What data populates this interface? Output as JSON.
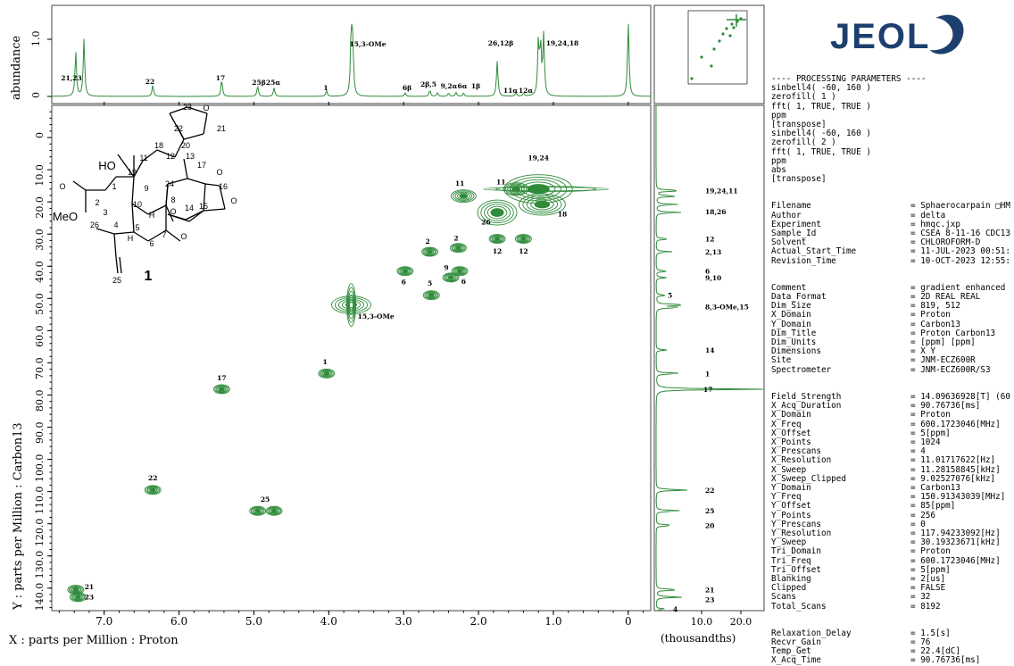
{
  "logo": {
    "text": "JEOL",
    "color": "#1d3f6e"
  },
  "colors": {
    "contour": "#2e8b3a",
    "trace": "#2e8b3a",
    "axis": "#000000",
    "panel_border": "#555555"
  },
  "chart_data": {
    "type": "heatmap",
    "experiment": "HMQC 2D NMR",
    "x_axis": {
      "label": "X : parts per Million : Proton",
      "range": [
        7.7,
        -0.3
      ],
      "ticks": [
        "7.0",
        "6.0",
        "5.0",
        "4.0",
        "3.0",
        "2.0",
        "1.0",
        "0"
      ],
      "tick_values": [
        7.0,
        6.0,
        5.0,
        4.0,
        3.0,
        2.0,
        1.0,
        0
      ]
    },
    "y_axis": {
      "label": "Y : parts per Million : Carbon13",
      "range": [
        -10,
        147
      ],
      "ticks": [
        "0",
        "10.0",
        "20.0",
        "30.0",
        "40.0",
        "50.0",
        "60.0",
        "70.0",
        "80.0",
        "90.0",
        "100.0",
        "110.0",
        "120.0",
        "130.0",
        "140.0"
      ],
      "tick_values": [
        0,
        10,
        20,
        30,
        40,
        50,
        60,
        70,
        80,
        90,
        100,
        110,
        120,
        130,
        140
      ]
    },
    "top_axis": {
      "label": "abundance",
      "ticks": [
        "0",
        "1.0"
      ]
    },
    "right_axis": {
      "label": "(thousandths)",
      "ticks": [
        "10.0",
        "20.0"
      ]
    },
    "cross_peaks": [
      {
        "label": "21",
        "x": 7.38,
        "y": 140.5,
        "lx": 7.2,
        "ly": 140.3
      },
      {
        "label": "23",
        "x": 7.35,
        "y": 142.8,
        "lx": 7.2,
        "ly": 143.5
      },
      {
        "label": "22",
        "x": 6.35,
        "y": 109.5,
        "lx": 6.35,
        "ly": 106.5
      },
      {
        "label": "17",
        "x": 5.43,
        "y": 78.2,
        "lx": 5.43,
        "ly": 75.5
      },
      {
        "label": "25",
        "x": 4.95,
        "y": 116.0,
        "lx": 4.85,
        "ly": 113.2
      },
      {
        "label": "25",
        "x": 4.73,
        "y": 116.0,
        "lx": null,
        "ly": null
      },
      {
        "label": "1",
        "x": 4.03,
        "y": 73.3,
        "lx": 4.05,
        "ly": 70.5
      },
      {
        "label": "15,3-OMe",
        "x": 3.7,
        "y": 52.0,
        "lx": 3.37,
        "ly": 56.3
      },
      {
        "label": "6",
        "x": 2.98,
        "y": 41.5,
        "lx": 3.0,
        "ly": 45.6
      },
      {
        "label": "2",
        "x": 2.65,
        "y": 35.5,
        "lx": 2.68,
        "ly": 33.0
      },
      {
        "label": "5",
        "x": 2.63,
        "y": 49.0,
        "lx": 2.65,
        "ly": 46.0
      },
      {
        "label": "9",
        "x": 2.37,
        "y": 43.5,
        "lx": 2.43,
        "ly": 41.2
      },
      {
        "label": "2",
        "x": 2.27,
        "y": 34.3,
        "lx": 2.3,
        "ly": 32.0
      },
      {
        "label": "6",
        "x": 2.25,
        "y": 41.5,
        "lx": 2.2,
        "ly": 45.5
      },
      {
        "label": "11",
        "x": 2.2,
        "y": 18.2,
        "lx": 2.25,
        "ly": 15.0
      },
      {
        "label": "26",
        "x": 1.75,
        "y": 23.3,
        "lx": 1.9,
        "ly": 27.0
      },
      {
        "label": "11",
        "x": 1.5,
        "y": 16.0,
        "lx": 1.7,
        "ly": 14.5
      },
      {
        "label": "12",
        "x": 1.75,
        "y": 31.5,
        "lx": 1.75,
        "ly": 36.0
      },
      {
        "label": "12",
        "x": 1.4,
        "y": 31.5,
        "lx": 1.4,
        "ly": 36.0
      },
      {
        "label": "19,24",
        "x": 1.2,
        "y": 16.0,
        "lx": 1.2,
        "ly": 7.0
      },
      {
        "label": "18",
        "x": 1.15,
        "y": 20.8,
        "lx": 0.88,
        "ly": 24.5
      }
    ],
    "top_spectrum_labels": [
      "21,23",
      "22",
      "17",
      "25β",
      "25α",
      "1",
      "15,3-OMe",
      "6β",
      "2β,5",
      "9,2α",
      "6α",
      "1β",
      "26,12β",
      "11α",
      "12α",
      "19,24,18"
    ],
    "right_spectrum_labels": [
      {
        "text": "19,24,11",
        "y": 16.5
      },
      {
        "text": "18,26",
        "y": 23.0
      },
      {
        "text": "12",
        "y": 31.5
      },
      {
        "text": "2,13",
        "y": 35.5
      },
      {
        "text": "6",
        "y": 41.5
      },
      {
        "text": "9,10",
        "y": 43.5
      },
      {
        "text": "5",
        "y": 49.0
      },
      {
        "text": "8,3-OMe,15",
        "y": 52.5
      },
      {
        "text": "14",
        "y": 66.0
      },
      {
        "text": "1",
        "y": 73.3
      },
      {
        "text": "17",
        "y": 78.2
      },
      {
        "text": "22",
        "y": 109.5
      },
      {
        "text": "25",
        "y": 116.0
      },
      {
        "text": "20",
        "y": 120.5
      },
      {
        "text": "21",
        "y": 140.5
      },
      {
        "text": "23",
        "y": 143.5
      },
      {
        "text": "4",
        "y": 146.5
      }
    ]
  },
  "structure": {
    "compound_label": "1",
    "atom_labels": [
      "23",
      "O",
      "21",
      "22",
      "20",
      "18",
      "17",
      "11",
      "12",
      "13",
      "HO",
      "19",
      "O",
      "16",
      "O",
      "1",
      "9",
      "10",
      "8",
      "14",
      "2",
      "O",
      "24",
      "15",
      "O",
      "3",
      "H",
      "MeO",
      "26",
      "4",
      "5",
      "7",
      "H",
      "6",
      "O",
      "25"
    ]
  },
  "processing": {
    "header": "---- PROCESSING PARAMETERS ----",
    "lines": [
      "sinbell4( -60, 160 )",
      "zerofill( 1 )",
      "fft( 1, TRUE, TRUE )",
      "ppm",
      "[transpose]",
      "sinbell4( -60, 160 )",
      "zerofill( 2 )",
      "fft( 1, TRUE, TRUE )",
      "ppm",
      "abs",
      "[transpose]"
    ]
  },
  "parameters": [
    [
      [
        "Filename",
        "= Sphaerocarpain □HM"
      ],
      [
        "Author",
        "= delta"
      ],
      [
        "Experiment",
        "= hmqc.jxp"
      ],
      [
        "Sample_Id",
        "= CSEA 8-11-16 CDC13"
      ],
      [
        "Solvent",
        "= CHLOROFORM-D"
      ],
      [
        "Actual_Start_Time",
        "= 11-JUL-2023 00:51:"
      ],
      [
        "Revision_Time",
        "= 10-OCT-2023 12:55:"
      ]
    ],
    [
      [
        "Comment",
        "= gradient enhanced"
      ],
      [
        "Data_Format",
        "= 2D REAL REAL"
      ],
      [
        "Dim_Size",
        "= 819, 512"
      ],
      [
        "X_Domain",
        "= Proton"
      ],
      [
        "Y_Domain",
        "= Carbon13"
      ],
      [
        "Dim_Title",
        "= Proton Carbon13"
      ],
      [
        "Dim_Units",
        "= [ppm] [ppm]"
      ],
      [
        "Dimensions",
        "= X Y"
      ],
      [
        "Site",
        "= JNM-ECZ600R"
      ],
      [
        "Spectrometer",
        "= JNM-ECZ600R/S3"
      ]
    ],
    [
      [
        "Field_Strength",
        "= 14.09636928[T] (60"
      ],
      [
        "X_Acq_Duration",
        "= 90.76736[ms]"
      ],
      [
        "X_Domain",
        "= Proton"
      ],
      [
        "X_Freq",
        "= 600.1723046[MHz]"
      ],
      [
        "X_Offset",
        "= 5[ppm]"
      ],
      [
        "X_Points",
        "= 1024"
      ],
      [
        "X_Prescans",
        "= 4"
      ],
      [
        "X_Resolution",
        "= 11.01717622[Hz]"
      ],
      [
        "X_Sweep",
        "= 11.28158845[kHz]"
      ],
      [
        "X_Sweep_Clipped",
        "= 9.02527076[kHz]"
      ],
      [
        "Y_Domain",
        "= Carbon13"
      ],
      [
        "Y_Freq",
        "= 150.91343039[MHz]"
      ],
      [
        "Y_Offset",
        "= 85[ppm]"
      ],
      [
        "Y_Points",
        "= 256"
      ],
      [
        "Y_Prescans",
        "= 0"
      ],
      [
        "Y_Resolution",
        "= 117.94233092[Hz]"
      ],
      [
        "Y_Sweep",
        "= 30.19323671[kHz]"
      ],
      [
        "Tri_Domain",
        "= Proton"
      ],
      [
        "Tri_Freq",
        "= 600.1723046[MHz]"
      ],
      [
        "Tri_Offset",
        "= 5[ppm]"
      ],
      [
        "Blanking",
        "= 2[us]"
      ],
      [
        "Clipped",
        "= FALSE"
      ],
      [
        "Scans",
        "= 32"
      ],
      [
        "Total_Scans",
        "= 8192"
      ]
    ],
    [
      [
        "Relaxation_Delay",
        "= 1.5[s]"
      ],
      [
        "Recvr_Gain",
        "= 76"
      ],
      [
        "Temp_Get",
        "= 22.4[dC]"
      ],
      [
        "X_Acq_Time",
        "= 90.76736[ms]"
      ]
    ]
  ]
}
